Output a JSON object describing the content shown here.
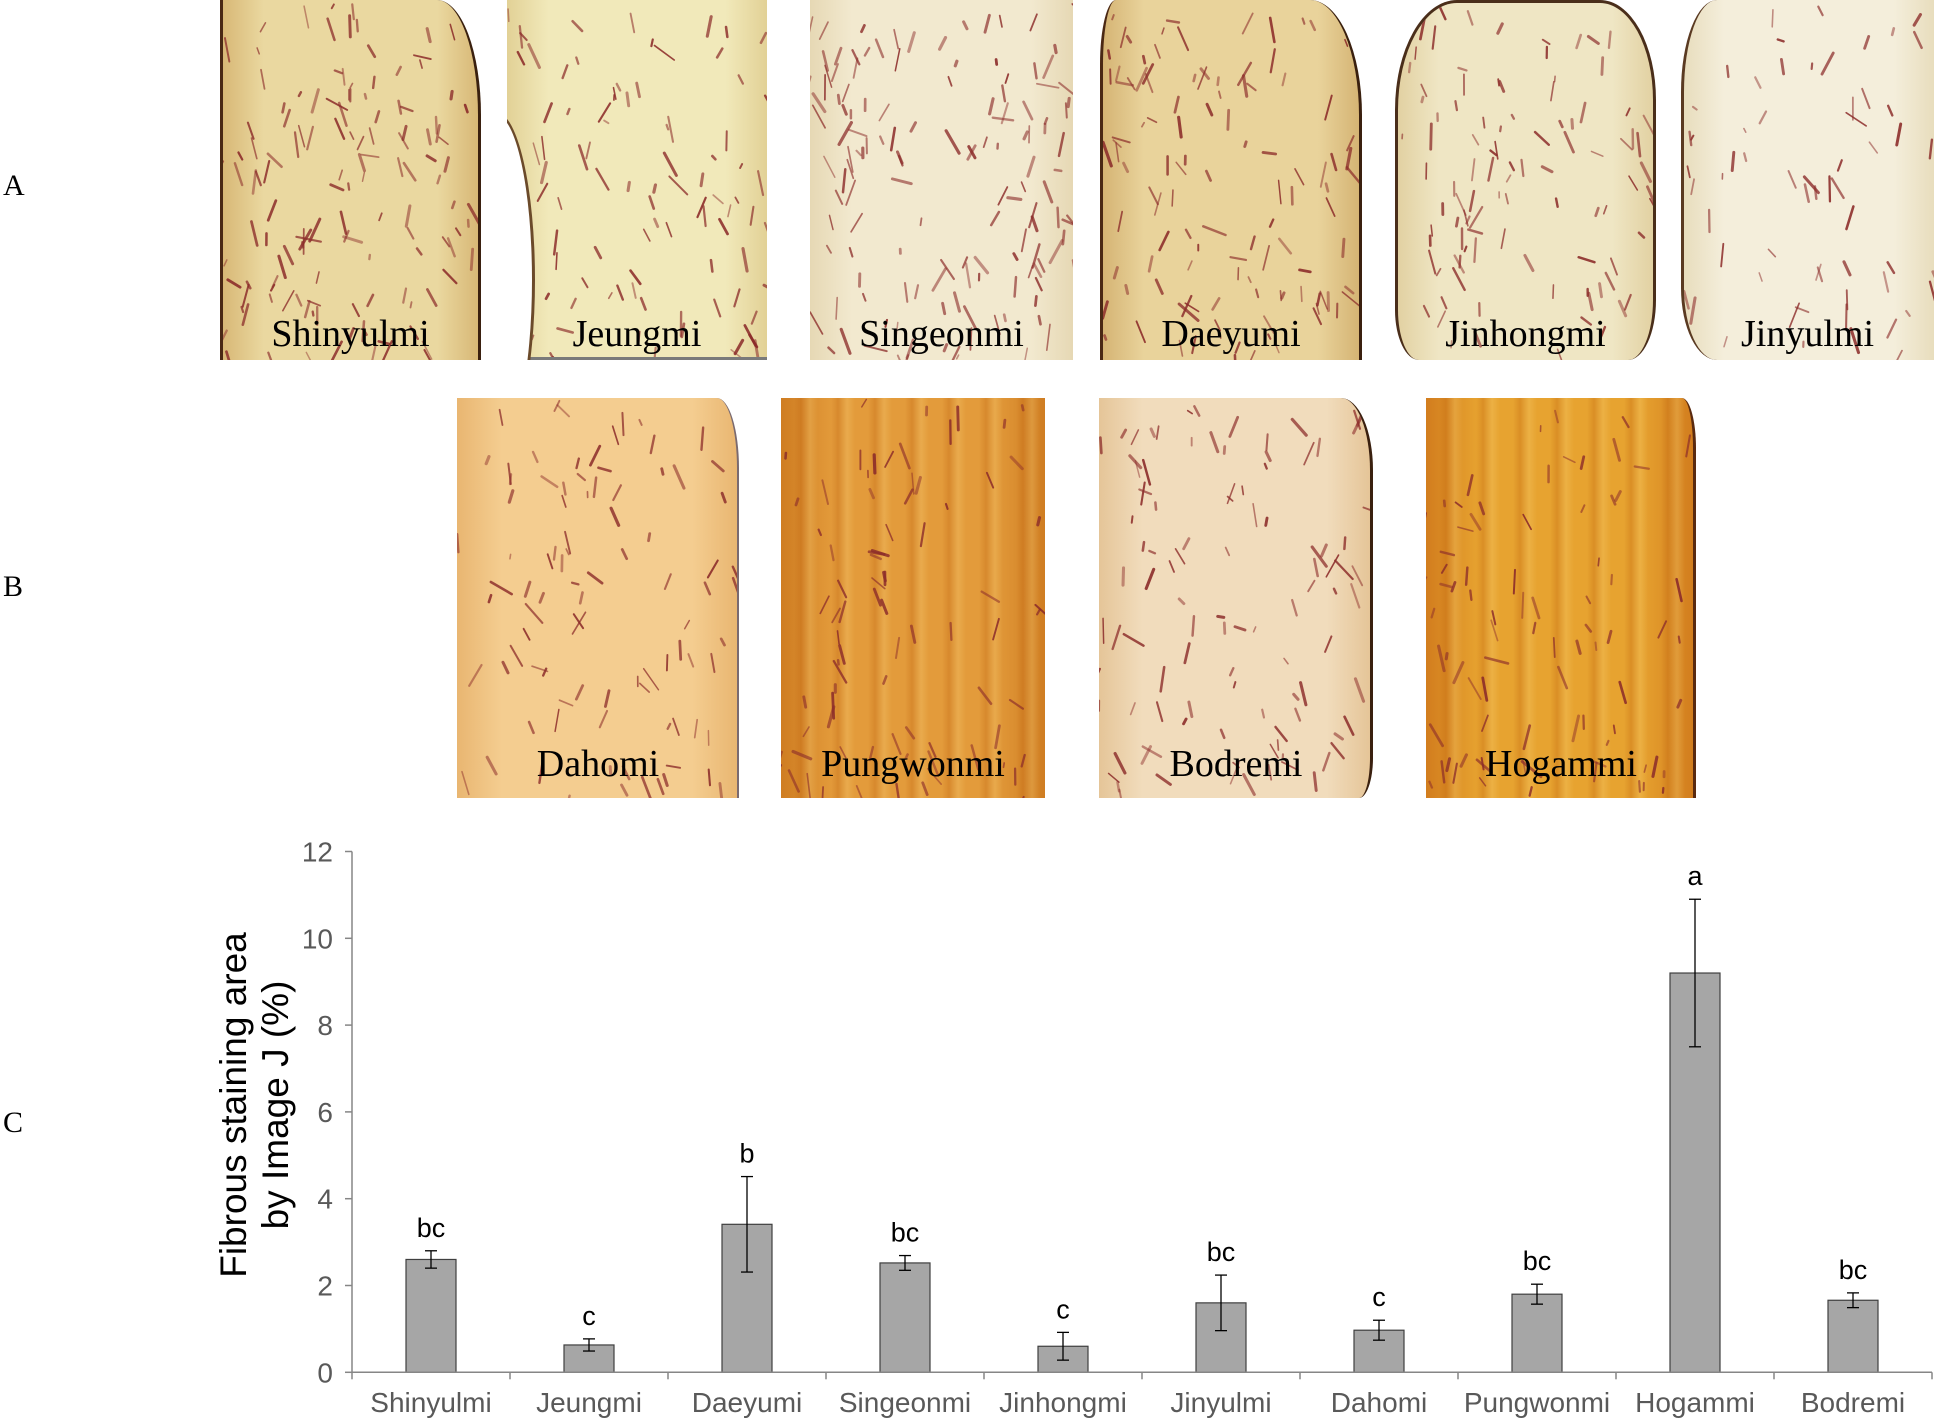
{
  "figure": {
    "stain_color": "#8c2c2a",
    "panel_a": {
      "letter": "A",
      "specimens": [
        {
          "name": "Shinyulmi",
          "tone": "#ead8a0",
          "edge": "#d8b876"
        },
        {
          "name": "Jeungmi",
          "tone": "#f1e9ba",
          "edge": "#e2d196"
        },
        {
          "name": "Singeonmi",
          "tone": "#f2e9cf",
          "edge": "#e6d8b4"
        },
        {
          "name": "Daeyumi",
          "tone": "#e9d39b",
          "edge": "#d5b474"
        },
        {
          "name": "Jinhongmi",
          "tone": "#efe6c4",
          "edge": "#e2d1a2"
        },
        {
          "name": "Jinyulmi",
          "tone": "#f4eedb",
          "edge": "#e8ddbd"
        }
      ]
    },
    "panel_b": {
      "letter": "B",
      "specimens": [
        {
          "name": "Dahomi",
          "tone": "#f4cd90",
          "edge": "#e9b671"
        },
        {
          "name": "Pungwonmi",
          "tone": "#e39b3b",
          "edge": "#cf7d22"
        },
        {
          "name": "Bodremi",
          "tone": "#f1dcbc",
          "edge": "#e5c598"
        },
        {
          "name": "Hogammi",
          "tone": "#e7a330",
          "edge": "#d27d1e"
        }
      ]
    },
    "panel_c": {
      "letter": "C"
    }
  },
  "chart_data": {
    "type": "bar",
    "categories": [
      "Shinyulmi",
      "Jeungmi",
      "Daeyumi",
      "Singeonmi",
      "Jinhongmi",
      "Jinyulmi",
      "Dahomi",
      "Pungwonmi",
      "Hogammi",
      "Bodremi"
    ],
    "values": [
      2.6,
      0.63,
      3.41,
      2.52,
      0.6,
      1.6,
      0.97,
      1.8,
      9.2,
      1.66
    ],
    "error": [
      0.2,
      0.14,
      1.1,
      0.17,
      0.32,
      0.64,
      0.23,
      0.23,
      1.7,
      0.17
    ],
    "significance": [
      "bc",
      "c",
      "b",
      "bc",
      "c",
      "bc",
      "c",
      "bc",
      "a",
      "bc"
    ],
    "ylabel": [
      "Fibrous staining area",
      "by Image J (%)"
    ],
    "ylim": [
      0,
      12
    ],
    "yticks": [
      0,
      2,
      4,
      6,
      8,
      10,
      12
    ],
    "grid": false,
    "bar_color": "#a6a6a6",
    "bar_outline": "#3f3f3f",
    "axis_color": "#868686",
    "tick_label_color": "#595959"
  }
}
